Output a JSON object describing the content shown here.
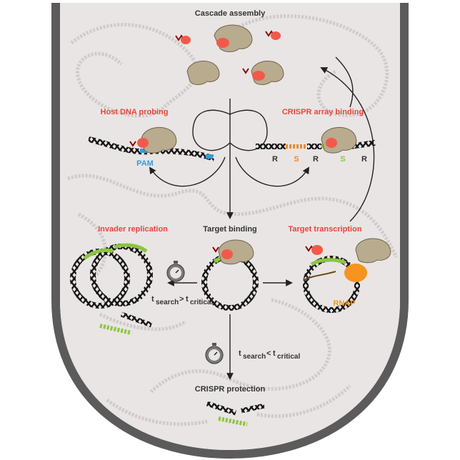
{
  "labels": {
    "cascade_assembly": "Cascade assembly",
    "host_dna_probing": "Host DNA probing",
    "crispr_array_binding": "CRISPR array binding",
    "pam": "PAM",
    "invader_replication": "Invader replication",
    "target_binding": "Target binding",
    "target_transcription": "Target transcription",
    "rnap": "RNAP",
    "crispr_protection": "CRISPR protection",
    "t_main": "t",
    "sub_search": "search",
    "sub_critical": "critical",
    "op_greater": ">",
    "op_less": "<"
  },
  "array_letters": [
    "R",
    "S",
    "R",
    "S",
    "R"
  ],
  "colors": {
    "cell_fill": "#e9e5e4",
    "cell_wall": "#5b5b5b",
    "highlight_red": "#e8453c",
    "pam_blue": "#3a9ad9",
    "spacer_orange": "#f08a2c",
    "spacer_green": "#8cc63f",
    "rnap_orange": "#f7941d",
    "cascade_tan": "#b9ab8e",
    "cas_red": "#f15a4a",
    "dna_black": "#1a1a1a"
  },
  "icons": [
    "stopwatch-icon",
    "cascade-complex-icon",
    "crrna-icon",
    "rnap-icon"
  ]
}
